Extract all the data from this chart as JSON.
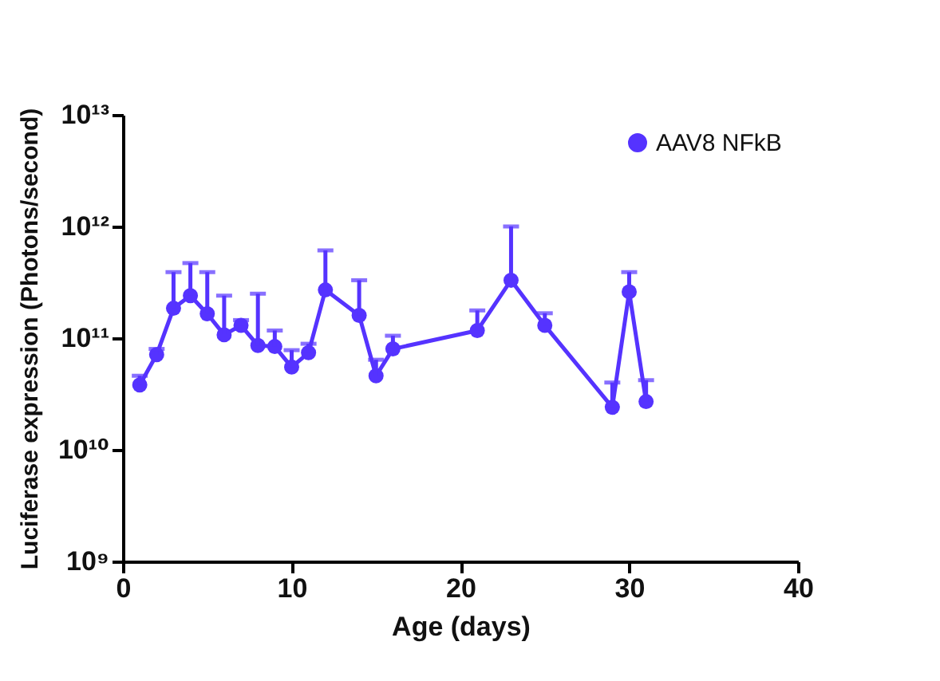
{
  "chart_data": {
    "type": "line",
    "xlabel": "Age (days)",
    "ylabel": "Luciferase expression (Photons/second)",
    "x": [
      1,
      2,
      3,
      4,
      5,
      6,
      7,
      8,
      9,
      10,
      11,
      12,
      14,
      15,
      16,
      21,
      23,
      25,
      29,
      30,
      31
    ],
    "series": [
      {
        "name": "AAV8 NFkB",
        "color": "#5533ff",
        "values": [
          38000000000.0,
          71000000000.0,
          185000000000.0,
          240000000000.0,
          165000000000.0,
          107000000000.0,
          130000000000.0,
          86000000000.0,
          84000000000.0,
          55000000000.0,
          74000000000.0,
          270000000000.0,
          160000000000.0,
          46000000000.0,
          80000000000.0,
          117000000000.0,
          330000000000.0,
          130000000000.0,
          24000000000.0,
          260000000000.0,
          27000000000.0
        ],
        "errors": [
          [
            38000000000.0,
            46000000000.0
          ],
          [
            71000000000.0,
            80000000000.0
          ],
          [
            185000000000.0,
            390000000000.0
          ],
          [
            240000000000.0,
            470000000000.0
          ],
          [
            165000000000.0,
            390000000000.0
          ],
          [
            107000000000.0,
            240000000000.0
          ],
          [
            130000000000.0,
            145000000000.0
          ],
          [
            86000000000.0,
            250000000000.0
          ],
          [
            84000000000.0,
            117000000000.0
          ],
          [
            55000000000.0,
            78000000000.0
          ],
          [
            74000000000.0,
            89000000000.0
          ],
          [
            270000000000.0,
            610000000000.0
          ],
          [
            160000000000.0,
            330000000000.0
          ],
          [
            46000000000.0,
            64000000000.0
          ],
          [
            80000000000.0,
            105000000000.0
          ],
          [
            117000000000.0,
            177000000000.0
          ],
          [
            330000000000.0,
            1000000000000.0
          ],
          [
            130000000000.0,
            167000000000.0
          ],
          [
            24000000000.0,
            40000000000.0
          ],
          [
            260000000000.0,
            390000000000.0
          ],
          [
            27000000000.0,
            42000000000.0
          ]
        ]
      }
    ],
    "xlim": [
      0,
      40
    ],
    "xticks": [
      0,
      10,
      20,
      30,
      40
    ],
    "ylim": [
      1000000000.0,
      10000000000000.0
    ],
    "yticks": [
      {
        "value": 1000000000.0,
        "label": "10⁹"
      },
      {
        "value": 10000000000.0,
        "label": "10¹⁰"
      },
      {
        "value": 100000000000.0,
        "label": "10¹¹"
      },
      {
        "value": 1000000000000.0,
        "label": "10¹²"
      },
      {
        "value": 10000000000000.0,
        "label": "10¹³"
      }
    ],
    "log": "y",
    "grid": false,
    "legend": "top right",
    "marker": "circle",
    "line_style": "solid"
  }
}
